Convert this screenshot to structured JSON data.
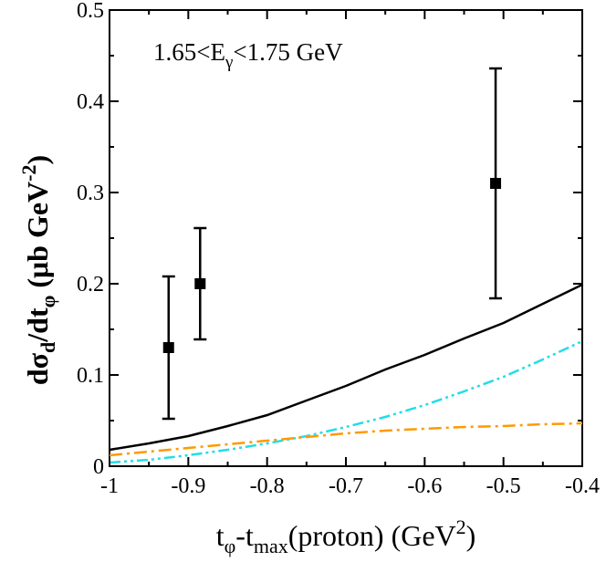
{
  "chart_data": {
    "type": "scatter",
    "xlim": [
      -1,
      -0.4
    ],
    "ylim": [
      0,
      0.5
    ],
    "x_ticks": [
      -1,
      -0.9,
      -0.8,
      -0.7,
      -0.6,
      -0.5,
      -0.4
    ],
    "x_tick_labels": [
      "-1",
      "-0.9",
      "-0.8",
      "-0.7",
      "-0.6",
      "-0.5",
      "-0.4"
    ],
    "y_ticks": [
      0,
      0.1,
      0.2,
      0.3,
      0.4,
      0.5
    ],
    "y_tick_labels": [
      "0",
      "0.1",
      "0.2",
      "0.3",
      "0.4",
      "0.5"
    ],
    "grid": false,
    "annotation": {
      "text": "1.65<E",
      "sub": "γ",
      "text2": "<1.75 GeV"
    },
    "xlabel": {
      "t": "t",
      "sub1": "φ",
      "mid": "-t",
      "sub2": "max",
      "rest": "(proton) (GeV",
      "sup": "2",
      "end": ")"
    },
    "ylabel": {
      "d1": "dσ",
      "sub1": "d",
      "d2": "/dt",
      "sub2": "φ",
      "mid": " (μb GeV",
      "sup": "-2",
      "end": ")"
    },
    "points": [
      {
        "x": -0.925,
        "y": 0.13,
        "err_low": 0.052,
        "err_high": 0.208
      },
      {
        "x": -0.885,
        "y": 0.2,
        "err_low": 0.139,
        "err_high": 0.261
      },
      {
        "x": -0.51,
        "y": 0.31,
        "err_low": 0.184,
        "err_high": 0.436
      }
    ],
    "series": [
      {
        "style": "solid",
        "color": "#000000",
        "x": [
          -1.0,
          -0.95,
          -0.9,
          -0.85,
          -0.8,
          -0.75,
          -0.7,
          -0.65,
          -0.6,
          -0.55,
          -0.5,
          -0.45,
          -0.4
        ],
        "y": [
          0.018,
          0.025,
          0.033,
          0.044,
          0.056,
          0.072,
          0.088,
          0.106,
          0.122,
          0.14,
          0.157,
          0.178,
          0.199
        ]
      },
      {
        "style": "dash-dot-dot",
        "color": "#22dde8",
        "x": [
          -1.0,
          -0.95,
          -0.9,
          -0.85,
          -0.8,
          -0.75,
          -0.7,
          -0.65,
          -0.6,
          -0.55,
          -0.5,
          -0.45,
          -0.4
        ],
        "y": [
          0.004,
          0.007,
          0.012,
          0.018,
          0.025,
          0.033,
          0.043,
          0.054,
          0.067,
          0.082,
          0.098,
          0.117,
          0.137
        ]
      },
      {
        "style": "dash-dot",
        "color": "#ff9900",
        "x": [
          -1.0,
          -0.95,
          -0.9,
          -0.85,
          -0.8,
          -0.75,
          -0.7,
          -0.65,
          -0.6,
          -0.55,
          -0.5,
          -0.45,
          -0.4
        ],
        "y": [
          0.012,
          0.016,
          0.02,
          0.024,
          0.028,
          0.032,
          0.036,
          0.039,
          0.041,
          0.043,
          0.044,
          0.046,
          0.047
        ]
      }
    ]
  }
}
